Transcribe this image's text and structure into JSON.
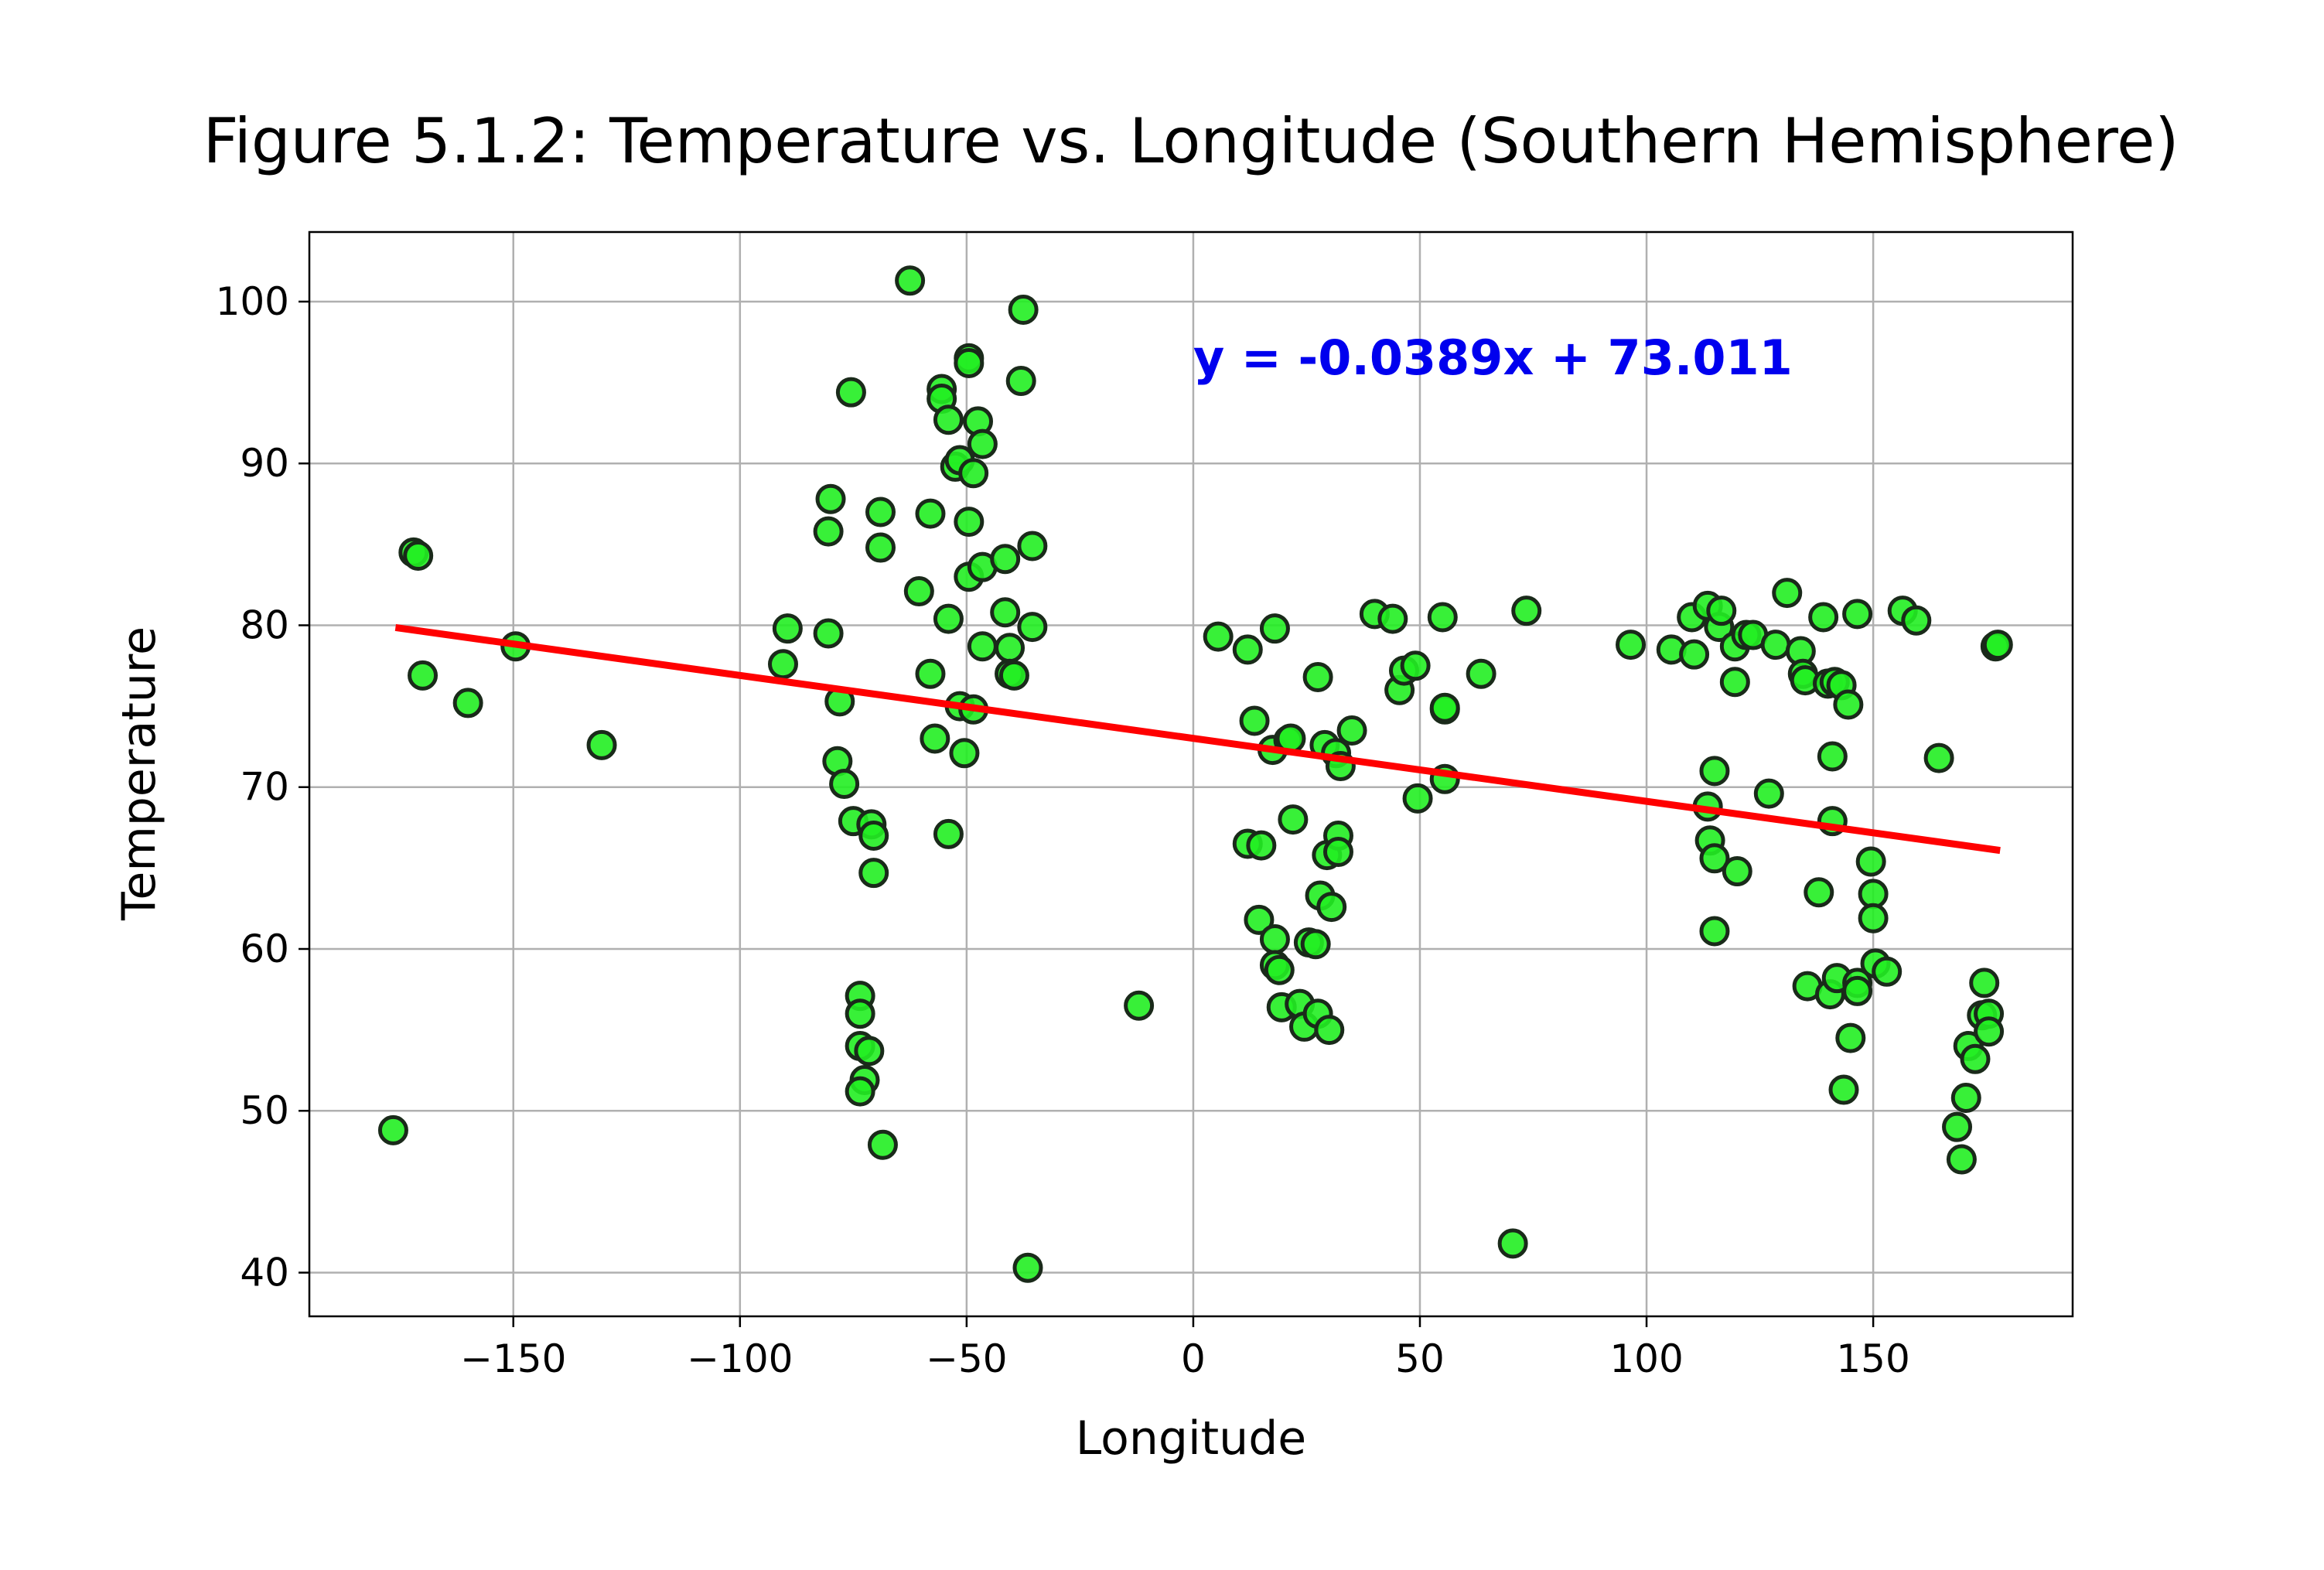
{
  "chart_data": {
    "type": "scatter",
    "title": "Figure 5.1.2: Temperature vs. Longitude (Southern Hemisphere)",
    "xlabel": "Longitude",
    "ylabel": "Temperature",
    "xlim": [
      -195,
      194
    ],
    "ylim": [
      37.3,
      104.3
    ],
    "xticks": [
      -150,
      -100,
      -50,
      0,
      50,
      100,
      150
    ],
    "xtick_labels": [
      "−150",
      "−100",
      "−50",
      "0",
      "50",
      "100",
      "150"
    ],
    "yticks": [
      40,
      50,
      60,
      70,
      80,
      90,
      100
    ],
    "ytick_labels": [
      "40",
      "50",
      "60",
      "70",
      "80",
      "90",
      "100"
    ],
    "grid": true,
    "marker_color": "#22ee22",
    "marker_edge_color": "#1a2a1a",
    "regression": {
      "slope": -0.0389,
      "intercept": 73.011,
      "x_range": [
        -176,
        178
      ],
      "color": "#ff0000",
      "equation_label": "y = -0.0389x + 73.011",
      "label_color": "#0000ee",
      "label_position": [
        0,
        95.5
      ]
    },
    "points": [
      [
        -176.5,
        48.8
      ],
      [
        -172,
        84.5
      ],
      [
        -171,
        84.3
      ],
      [
        -170,
        76.9
      ],
      [
        -160,
        75.2
      ],
      [
        -149.5,
        78.7
      ],
      [
        -130.5,
        72.6
      ],
      [
        -90.5,
        77.6
      ],
      [
        -89.5,
        79.8
      ],
      [
        -80.5,
        85.8
      ],
      [
        -80,
        87.8
      ],
      [
        -80.5,
        79.5
      ],
      [
        -78,
        75.3
      ],
      [
        -78.5,
        71.6
      ],
      [
        -77,
        70.2
      ],
      [
        -75.5,
        94.4
      ],
      [
        -75,
        67.9
      ],
      [
        -73.5,
        57.1
      ],
      [
        -73.5,
        56.0
      ],
      [
        -73.5,
        54.0
      ],
      [
        -72.5,
        51.9
      ],
      [
        -73.5,
        51.2
      ],
      [
        -71.5,
        53.7
      ],
      [
        -71,
        67.7
      ],
      [
        -70.5,
        67.0
      ],
      [
        -70.5,
        64.7
      ],
      [
        -69,
        87.0
      ],
      [
        -69,
        84.8
      ],
      [
        -68.5,
        47.9
      ],
      [
        -62.5,
        101.3
      ],
      [
        -60.5,
        82.1
      ],
      [
        -58,
        86.9
      ],
      [
        -58,
        77.0
      ],
      [
        -57,
        73.0
      ],
      [
        -55.5,
        94.6
      ],
      [
        -55.5,
        94.0
      ],
      [
        -54,
        92.7
      ],
      [
        -54,
        80.4
      ],
      [
        -54,
        67.1
      ],
      [
        -52.5,
        89.8
      ],
      [
        -51.5,
        90.2
      ],
      [
        -51.5,
        75.0
      ],
      [
        -50.5,
        72.1
      ],
      [
        -49.5,
        96.5
      ],
      [
        -49.5,
        96.2
      ],
      [
        -49.5,
        86.4
      ],
      [
        -49.5,
        83.0
      ],
      [
        -48.5,
        89.4
      ],
      [
        -48.5,
        74.8
      ],
      [
        -47.5,
        92.6
      ],
      [
        -46.5,
        91.2
      ],
      [
        -46.5,
        83.6
      ],
      [
        -46.5,
        78.7
      ],
      [
        -41.5,
        84.1
      ],
      [
        -41.5,
        80.8
      ],
      [
        -40.5,
        78.6
      ],
      [
        -40.5,
        77.0
      ],
      [
        -39.5,
        76.9
      ],
      [
        -37.5,
        99.5
      ],
      [
        -38,
        95.1
      ],
      [
        -35.5,
        84.9
      ],
      [
        -35.5,
        79.9
      ],
      [
        -36.5,
        40.3
      ],
      [
        -12,
        56.5
      ],
      [
        5.5,
        79.3
      ],
      [
        12,
        78.5
      ],
      [
        12,
        66.5
      ],
      [
        13.5,
        74.1
      ],
      [
        14.5,
        61.8
      ],
      [
        15,
        66.4
      ],
      [
        17.5,
        72.3
      ],
      [
        18,
        79.8
      ],
      [
        18,
        60.6
      ],
      [
        18,
        59.0
      ],
      [
        19,
        58.7
      ],
      [
        19.5,
        56.4
      ],
      [
        21,
        72.9
      ],
      [
        21.5,
        73.0
      ],
      [
        22,
        68.0
      ],
      [
        23.5,
        56.6
      ],
      [
        24.5,
        55.2
      ],
      [
        25.5,
        60.4
      ],
      [
        27,
        60.3
      ],
      [
        27.5,
        56.0
      ],
      [
        27.5,
        76.8
      ],
      [
        28,
        63.3
      ],
      [
        29,
        72.6
      ],
      [
        29.5,
        65.8
      ],
      [
        30,
        55.0
      ],
      [
        30.5,
        62.6
      ],
      [
        31.5,
        72.1
      ],
      [
        32,
        67.0
      ],
      [
        32,
        66.0
      ],
      [
        32.5,
        71.3
      ],
      [
        35,
        73.5
      ],
      [
        40,
        80.7
      ],
      [
        44,
        80.4
      ],
      [
        45.5,
        76.0
      ],
      [
        46.5,
        77.2
      ],
      [
        49,
        77.5
      ],
      [
        49.5,
        69.3
      ],
      [
        55,
        80.5
      ],
      [
        55.5,
        74.8
      ],
      [
        55.5,
        74.9
      ],
      [
        55.5,
        70.5
      ],
      [
        63.5,
        77.0
      ],
      [
        70.5,
        41.8
      ],
      [
        73.5,
        80.9
      ],
      [
        96.5,
        78.8
      ],
      [
        105.5,
        78.5
      ],
      [
        110,
        80.5
      ],
      [
        110.5,
        78.2
      ],
      [
        113.5,
        81.2
      ],
      [
        113.5,
        68.8
      ],
      [
        114,
        66.7
      ],
      [
        115,
        71.0
      ],
      [
        115,
        65.6
      ],
      [
        115,
        61.1
      ],
      [
        116,
        79.9
      ],
      [
        116.5,
        80.9
      ],
      [
        119.5,
        78.7
      ],
      [
        119.5,
        76.5
      ],
      [
        120,
        64.8
      ],
      [
        122,
        79.4
      ],
      [
        123.5,
        79.4
      ],
      [
        127,
        69.6
      ],
      [
        128.5,
        78.8
      ],
      [
        131,
        82.0
      ],
      [
        134,
        78.4
      ],
      [
        134.5,
        77.0
      ],
      [
        135,
        76.6
      ],
      [
        135.5,
        57.7
      ],
      [
        138,
        63.5
      ],
      [
        139,
        80.5
      ],
      [
        140,
        76.4
      ],
      [
        140.5,
        57.2
      ],
      [
        141,
        71.9
      ],
      [
        141,
        67.9
      ],
      [
        141.5,
        76.5
      ],
      [
        142,
        58.2
      ],
      [
        143,
        76.3
      ],
      [
        143.5,
        51.3
      ],
      [
        144.5,
        75.1
      ],
      [
        145,
        54.5
      ],
      [
        146.5,
        80.7
      ],
      [
        146.5,
        57.9
      ],
      [
        146.5,
        57.4
      ],
      [
        149.5,
        65.4
      ],
      [
        150,
        63.4
      ],
      [
        150,
        61.9
      ],
      [
        150.5,
        59.1
      ],
      [
        153,
        58.6
      ],
      [
        156.5,
        80.9
      ],
      [
        159.5,
        80.3
      ],
      [
        164.5,
        71.8
      ],
      [
        168.5,
        49.0
      ],
      [
        169.5,
        47.0
      ],
      [
        170.5,
        50.8
      ],
      [
        171,
        54.0
      ],
      [
        172.5,
        53.2
      ],
      [
        174,
        55.9
      ],
      [
        174.5,
        57.9
      ],
      [
        175.5,
        56.0
      ],
      [
        175.5,
        54.9
      ],
      [
        177,
        78.7
      ],
      [
        177.5,
        78.8
      ]
    ]
  }
}
